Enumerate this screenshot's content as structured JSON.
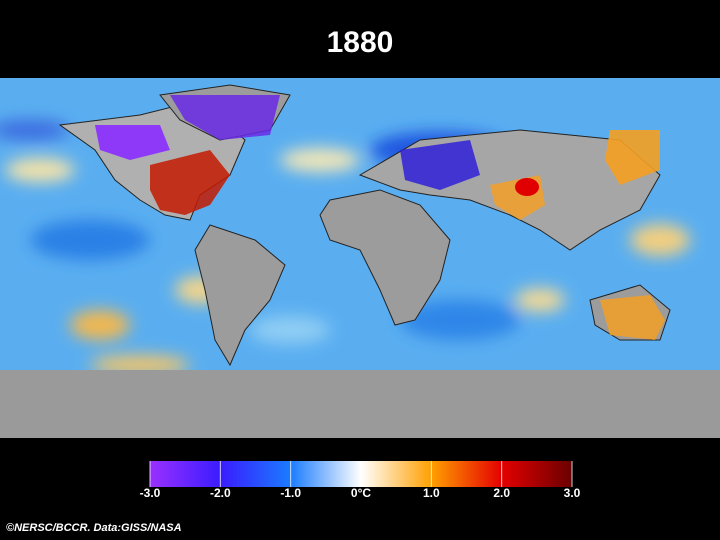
{
  "title": "1880",
  "colorbar": {
    "lim": [
      -3,
      3
    ],
    "ticks": [
      {
        "value": -3,
        "label": "-3.0"
      },
      {
        "value": -2,
        "label": "-2.0"
      },
      {
        "value": -1,
        "label": "-1.0"
      },
      {
        "value": 0,
        "label": "0°C"
      },
      {
        "value": 1,
        "label": "1.0"
      },
      {
        "value": 2,
        "label": "2.0"
      },
      {
        "value": 3,
        "label": "3.0"
      }
    ],
    "colors": [
      "#9a30ff",
      "#3a1cff",
      "#1a7cff",
      "#ffffff",
      "#ffa000",
      "#e40000",
      "#6a0000"
    ]
  },
  "credit": "©NERSC/BCCR. Data:GISS/NASA"
}
